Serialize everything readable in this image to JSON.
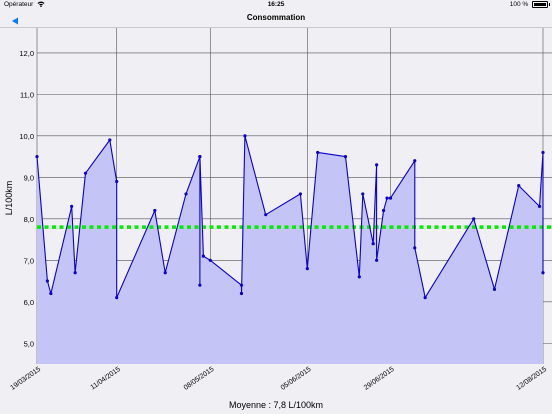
{
  "status_bar": {
    "carrier": "Opérateur",
    "wifi_icon": "wifi-icon",
    "time": "16:25",
    "battery_percent": "100 %",
    "battery_icon": "battery-icon"
  },
  "nav": {
    "back_icon": "back-arrow-icon",
    "title": "Consommation"
  },
  "footer": {
    "average_label": "Moyenne : 7,8 L/100km"
  },
  "colors": {
    "line": "#0c00c9",
    "fill": "#c4c4f6",
    "average": "#00ee00",
    "back_button": "#007aff",
    "grid": "#555555"
  },
  "chart_data": {
    "type": "area",
    "ylabel": "L/100km",
    "ylim": [
      4.5,
      12.6
    ],
    "yticks": [
      "5,0",
      "6,0",
      "7,0",
      "8,0",
      "9,0",
      "10,0",
      "11,0",
      "12,0"
    ],
    "ytick_values": [
      5,
      6,
      7,
      8,
      9,
      10,
      11,
      12
    ],
    "xlim": [
      "2015-03-19",
      "2015-08-12"
    ],
    "xticks": [
      {
        "date": "2015-03-19",
        "label": "19/03/2015"
      },
      {
        "date": "2015-04-11",
        "label": "11/04/2015"
      },
      {
        "date": "2015-05-08",
        "label": "08/05/2015"
      },
      {
        "date": "2015-06-05",
        "label": "05/06/2015"
      },
      {
        "date": "2015-06-29",
        "label": "29/06/2015"
      },
      {
        "date": "2015-08-12",
        "label": "12/08/2015"
      }
    ],
    "average": 7.8,
    "series": [
      {
        "x": [
          "2015-03-19",
          "2015-03-22",
          "2015-03-23",
          "2015-03-29",
          "2015-03-30",
          "2015-04-02",
          "2015-04-09",
          "2015-04-11",
          "2015-04-11",
          "2015-04-22",
          "2015-04-25",
          "2015-05-01",
          "2015-05-05",
          "2015-05-05",
          "2015-05-05",
          "2015-05-06",
          "2015-05-08",
          "2015-05-17",
          "2015-05-17",
          "2015-05-18",
          "2015-05-24",
          "2015-06-03",
          "2015-06-05",
          "2015-06-08",
          "2015-06-16",
          "2015-06-20",
          "2015-06-21",
          "2015-06-24",
          "2015-06-25",
          "2015-06-25",
          "2015-06-27",
          "2015-06-28",
          "2015-06-29",
          "2015-07-06",
          "2015-07-06",
          "2015-07-09",
          "2015-07-23",
          "2015-07-29",
          "2015-08-05",
          "2015-08-11",
          "2015-08-12",
          "2015-08-12"
        ],
        "y": [
          9.5,
          6.5,
          6.2,
          8.3,
          6.7,
          9.1,
          9.9,
          8.9,
          6.1,
          8.2,
          6.7,
          8.6,
          9.5,
          6.4,
          9.5,
          7.1,
          7.0,
          6.4,
          6.2,
          10.0,
          8.1,
          8.6,
          6.8,
          9.6,
          9.5,
          6.6,
          8.6,
          7.4,
          9.3,
          7.0,
          8.2,
          8.5,
          8.5,
          9.4,
          7.3,
          6.1,
          8.0,
          6.3,
          8.8,
          8.3,
          9.6,
          6.7
        ]
      }
    ]
  }
}
